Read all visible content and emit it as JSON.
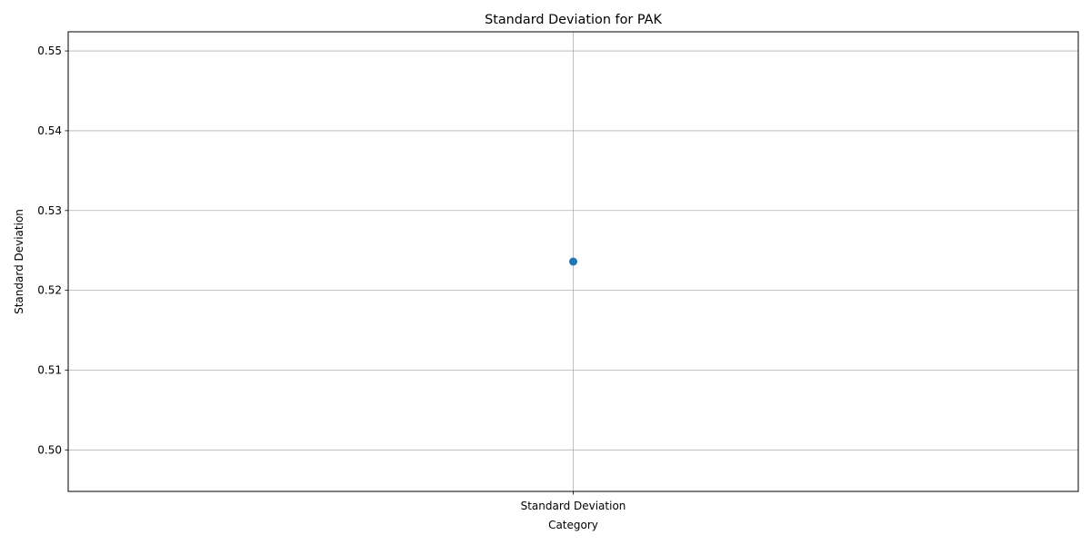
{
  "chart_data": {
    "type": "line",
    "title": "Standard Deviation for PAK",
    "xlabel": "Category",
    "ylabel": "Standard Deviation",
    "categories": [
      "Standard Deviation"
    ],
    "series": [
      {
        "values": [
          0.5236
        ],
        "color": "#1f77b4"
      }
    ],
    "ylim": [
      0.4948,
      0.5524
    ],
    "yticks": [
      0.5,
      0.51,
      0.52,
      0.53,
      0.54,
      0.55
    ],
    "ytick_labels": [
      "0.50",
      "0.51",
      "0.52",
      "0.53",
      "0.54",
      "0.55"
    ],
    "grid": true,
    "legend": "none"
  }
}
